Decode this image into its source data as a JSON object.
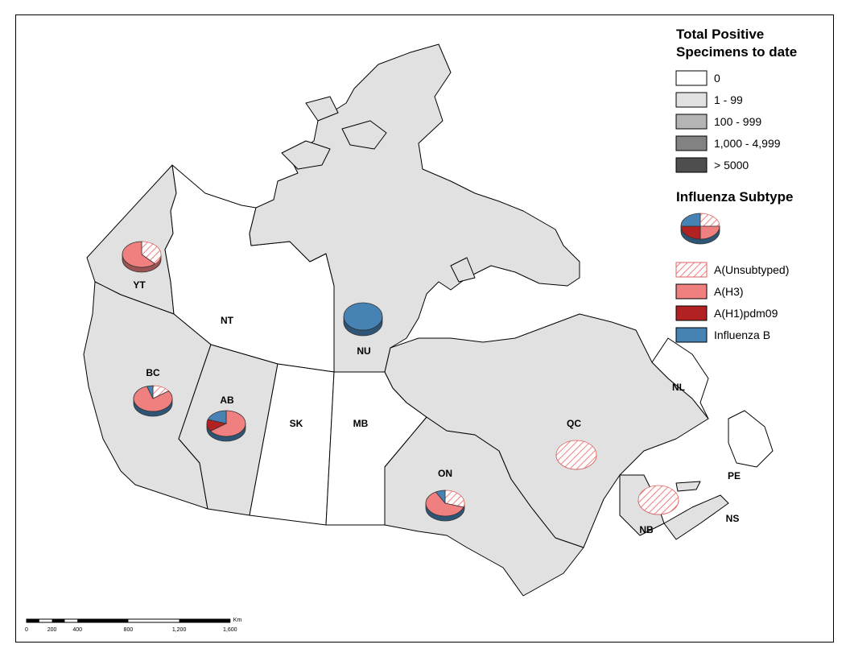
{
  "legend": {
    "count_title_line1": "Total Positive",
    "count_title_line2": "Specimens to date",
    "count_classes": [
      {
        "label": "0",
        "color": "#ffffff"
      },
      {
        "label": "1 - 99",
        "color": "#e1e1e1"
      },
      {
        "label": "100 - 999",
        "color": "#b4b4b4"
      },
      {
        "label": "1,000 - 4,999",
        "color": "#828282"
      },
      {
        "label": "> 5000",
        "color": "#4e4e4e"
      }
    ],
    "subtype_title": "Influenza Subtype",
    "subtypes": [
      {
        "label": "A(Unsubtyped)",
        "color": "#f4a0a0",
        "pattern": "hatched"
      },
      {
        "label": "A(H3)",
        "color": "#f08080"
      },
      {
        "label": "A(H1)pdm09",
        "color": "#b22222"
      },
      {
        "label": "Influenza B",
        "color": "#4682b4"
      }
    ]
  },
  "provinces": {
    "YT": "YT",
    "NT": "NT",
    "NU": "NU",
    "BC": "BC",
    "AB": "AB",
    "SK": "SK",
    "MB": "MB",
    "ON": "ON",
    "QC": "QC",
    "NL": "NL",
    "NB": "NB",
    "NS": "NS",
    "PE": "PE"
  },
  "province_class": {
    "YT": "1 - 99",
    "NT": "0",
    "NU": "1 - 99",
    "BC": "1 - 99",
    "AB": "1 - 99",
    "SK": "0",
    "MB": "0",
    "ON": "1 - 99",
    "QC": "1 - 99",
    "NL": "0",
    "NB": "1 - 99",
    "NS": "1 - 99",
    "PE": "1 - 99"
  },
  "pie_shares": {
    "YT": {
      "A(Unsubtyped)": 0.38,
      "A(H3)": 0.62
    },
    "NU": {
      "Influenza B": 1.0
    },
    "BC": {
      "A(Unsubtyped)": 0.15,
      "A(H3)": 0.8,
      "Influenza B": 0.05
    },
    "AB": {
      "A(H3)": 0.65,
      "A(H1)pdm09": 0.15,
      "Influenza B": 0.2
    },
    "ON": {
      "A(Unsubtyped)": 0.3,
      "A(H3)": 0.62,
      "Influenza B": 0.08
    },
    "QC": {
      "A(Unsubtyped)": 1.0
    },
    "NB": {
      "A(Unsubtyped)": 1.0
    }
  },
  "scale": {
    "ticks": [
      "0",
      "200",
      "400",
      "800",
      "1,200",
      "1,600"
    ],
    "unit": "Km"
  }
}
